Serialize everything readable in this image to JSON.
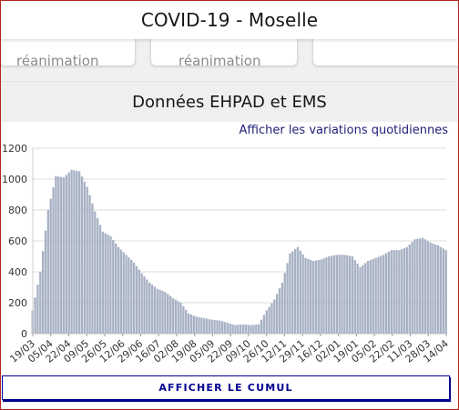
{
  "header": {
    "title": "COVID-19 - Moselle"
  },
  "cards": [
    {
      "text": "réanimation"
    },
    {
      "text": "réanimation"
    },
    {
      "text": ""
    }
  ],
  "section": {
    "title": "Données EHPAD et EMS",
    "variations_link": "Afficher les variations quotidiennes",
    "cumul_button": "AFFICHER LE CUMUL"
  },
  "colors": {
    "bar_fill": "#a8b2c4",
    "accent": "#000091",
    "border": "#b3261e"
  },
  "chart_data": {
    "type": "bar",
    "ylim": [
      0,
      1200
    ],
    "yticks": [
      0,
      200,
      400,
      600,
      800,
      1000,
      1200
    ],
    "grid": true,
    "xlabel": "",
    "ylabel": "",
    "xtick_labels": [
      "19/03",
      "05/04",
      "22/04",
      "09/05",
      "26/05",
      "12/06",
      "29/06",
      "16/07",
      "02/08",
      "19/08",
      "05/09",
      "22/09",
      "09/10",
      "26/10",
      "12/11",
      "29/11",
      "16/12",
      "02/01",
      "19/01",
      "05/02",
      "22/02",
      "11/03",
      "28/03",
      "14/04"
    ],
    "series": [
      {
        "points": [
          [
            "19/03",
            150
          ],
          [
            "26/03",
            400
          ],
          [
            "01/04",
            800
          ],
          [
            "05/04",
            1020
          ],
          [
            "12/04",
            1010
          ],
          [
            "18/04",
            1060
          ],
          [
            "22/04",
            1050
          ],
          [
            "28/04",
            950
          ],
          [
            "04/05",
            790
          ],
          [
            "09/05",
            660
          ],
          [
            "16/05",
            630
          ],
          [
            "22/05",
            560
          ],
          [
            "26/05",
            510
          ],
          [
            "05/06",
            460
          ],
          [
            "12/06",
            390
          ],
          [
            "20/06",
            330
          ],
          [
            "29/06",
            290
          ],
          [
            "07/07",
            270
          ],
          [
            "16/07",
            230
          ],
          [
            "24/07",
            200
          ],
          [
            "02/08",
            130
          ],
          [
            "10/08",
            110
          ],
          [
            "19/08",
            100
          ],
          [
            "27/08",
            90
          ],
          [
            "05/09",
            85
          ],
          [
            "12/09",
            70
          ],
          [
            "22/09",
            55
          ],
          [
            "30/09",
            60
          ],
          [
            "09/10",
            55
          ],
          [
            "16/10",
            60
          ],
          [
            "20/10",
            150
          ],
          [
            "26/10",
            220
          ],
          [
            "02/11",
            330
          ],
          [
            "08/11",
            520
          ],
          [
            "12/11",
            560
          ],
          [
            "20/11",
            490
          ],
          [
            "29/11",
            470
          ],
          [
            "07/12",
            480
          ],
          [
            "16/12",
            500
          ],
          [
            "23/12",
            510
          ],
          [
            "02/01",
            510
          ],
          [
            "10/01",
            500
          ],
          [
            "19/01",
            430
          ],
          [
            "27/01",
            470
          ],
          [
            "05/02",
            490
          ],
          [
            "14/02",
            510
          ],
          [
            "22/02",
            540
          ],
          [
            "03/03",
            540
          ],
          [
            "11/03",
            560
          ],
          [
            "20/03",
            610
          ],
          [
            "28/03",
            620
          ],
          [
            "06/04",
            590
          ],
          [
            "14/04",
            570
          ],
          [
            "22/04",
            540
          ]
        ]
      }
    ]
  }
}
